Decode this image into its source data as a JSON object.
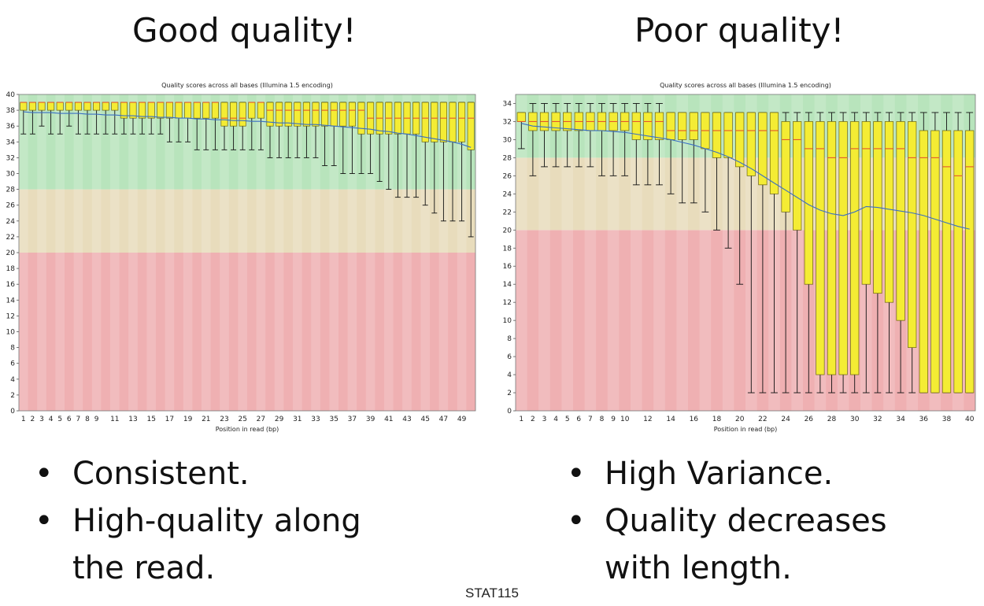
{
  "slide": {
    "left_heading": "Good quality!",
    "right_heading": "Poor quality!",
    "left_bullets": [
      "Consistent.",
      "High-quality along the read."
    ],
    "right_bullets": [
      "High Variance.",
      "Quality decreases with length."
    ],
    "footer": "STAT115"
  },
  "colors": {
    "good_zone": "#b8e4bc",
    "ok_zone": "#e8dcbc",
    "bad_zone": "#efb0b2",
    "box_fill": "#f4ec34",
    "box_stroke": "#6a6410",
    "median": "#e4572e",
    "mean_line": "#3a6fc4",
    "whisker": "#111111"
  },
  "chart_data": [
    {
      "type": "box",
      "title": "Quality scores across all bases (Illumina 1.5 encoding)",
      "xlabel": "Position in read (bp)",
      "ylabel": "",
      "ylim": [
        0,
        40
      ],
      "yticks": [
        0,
        2,
        4,
        6,
        8,
        10,
        12,
        14,
        16,
        18,
        20,
        22,
        24,
        26,
        28,
        30,
        32,
        34,
        36,
        38,
        40
      ],
      "x_tick_labels": [
        "1",
        "2",
        "3",
        "4",
        "5",
        "6",
        "7",
        "8",
        "9",
        "11",
        "13",
        "15",
        "17",
        "19",
        "21",
        "23",
        "25",
        "27",
        "29",
        "31",
        "33",
        "35",
        "37",
        "39",
        "41",
        "43",
        "45",
        "47",
        "49"
      ],
      "zones": {
        "good": [
          28,
          40
        ],
        "ok": [
          20,
          28
        ],
        "bad": [
          0,
          20
        ]
      },
      "boxes": [
        {
          "x": "1",
          "low": 35,
          "q1": 38,
          "median": 39,
          "q3": 39,
          "high": 39
        },
        {
          "x": "2",
          "low": 35,
          "q1": 38,
          "median": 39,
          "q3": 39,
          "high": 39
        },
        {
          "x": "3",
          "low": 36,
          "q1": 38,
          "median": 39,
          "q3": 39,
          "high": 39
        },
        {
          "x": "4",
          "low": 35,
          "q1": 38,
          "median": 39,
          "q3": 39,
          "high": 39
        },
        {
          "x": "5",
          "low": 35,
          "q1": 38,
          "median": 39,
          "q3": 39,
          "high": 39
        },
        {
          "x": "6",
          "low": 36,
          "q1": 38,
          "median": 39,
          "q3": 39,
          "high": 39
        },
        {
          "x": "7",
          "low": 35,
          "q1": 38,
          "median": 39,
          "q3": 39,
          "high": 39
        },
        {
          "x": "8",
          "low": 35,
          "q1": 38,
          "median": 39,
          "q3": 39,
          "high": 39
        },
        {
          "x": "9",
          "low": 35,
          "q1": 38,
          "median": 39,
          "q3": 39,
          "high": 39
        },
        {
          "x": "10",
          "low": 35,
          "q1": 38,
          "median": 39,
          "q3": 39,
          "high": 39
        },
        {
          "x": "11",
          "low": 35,
          "q1": 38,
          "median": 39,
          "q3": 39,
          "high": 39
        },
        {
          "x": "12",
          "low": 35,
          "q1": 37,
          "median": 39,
          "q3": 39,
          "high": 39
        },
        {
          "x": "13",
          "low": 35,
          "q1": 37,
          "median": 39,
          "q3": 39,
          "high": 39
        },
        {
          "x": "14",
          "low": 35,
          "q1": 37,
          "median": 39,
          "q3": 39,
          "high": 39
        },
        {
          "x": "15",
          "low": 35,
          "q1": 37,
          "median": 39,
          "q3": 39,
          "high": 39
        },
        {
          "x": "16",
          "low": 35,
          "q1": 37,
          "median": 39,
          "q3": 39,
          "high": 39
        },
        {
          "x": "17",
          "low": 34,
          "q1": 37,
          "median": 39,
          "q3": 39,
          "high": 39
        },
        {
          "x": "18",
          "low": 34,
          "q1": 37,
          "median": 39,
          "q3": 39,
          "high": 39
        },
        {
          "x": "19",
          "low": 34,
          "q1": 37,
          "median": 39,
          "q3": 39,
          "high": 39
        },
        {
          "x": "20",
          "low": 33,
          "q1": 37,
          "median": 39,
          "q3": 39,
          "high": 39
        },
        {
          "x": "21",
          "low": 33,
          "q1": 37,
          "median": 39,
          "q3": 39,
          "high": 39
        },
        {
          "x": "22",
          "low": 33,
          "q1": 37,
          "median": 39,
          "q3": 39,
          "high": 39
        },
        {
          "x": "23",
          "low": 33,
          "q1": 36,
          "median": 37,
          "q3": 39,
          "high": 39
        },
        {
          "x": "24",
          "low": 33,
          "q1": 36,
          "median": 37,
          "q3": 39,
          "high": 39
        },
        {
          "x": "25",
          "low": 33,
          "q1": 36,
          "median": 37,
          "q3": 39,
          "high": 39
        },
        {
          "x": "26",
          "low": 33,
          "q1": 37,
          "median": 39,
          "q3": 39,
          "high": 39
        },
        {
          "x": "27",
          "low": 33,
          "q1": 37,
          "median": 39,
          "q3": 39,
          "high": 39
        },
        {
          "x": "28",
          "low": 32,
          "q1": 36,
          "median": 38,
          "q3": 39,
          "high": 39
        },
        {
          "x": "29",
          "low": 32,
          "q1": 36,
          "median": 38,
          "q3": 39,
          "high": 39
        },
        {
          "x": "30",
          "low": 32,
          "q1": 36,
          "median": 38,
          "q3": 39,
          "high": 39
        },
        {
          "x": "31",
          "low": 32,
          "q1": 36,
          "median": 38,
          "q3": 39,
          "high": 39
        },
        {
          "x": "32",
          "low": 32,
          "q1": 36,
          "median": 38,
          "q3": 39,
          "high": 39
        },
        {
          "x": "33",
          "low": 32,
          "q1": 36,
          "median": 38,
          "q3": 39,
          "high": 39
        },
        {
          "x": "34",
          "low": 31,
          "q1": 36,
          "median": 38,
          "q3": 39,
          "high": 39
        },
        {
          "x": "35",
          "low": 31,
          "q1": 36,
          "median": 38,
          "q3": 39,
          "high": 39
        },
        {
          "x": "36",
          "low": 30,
          "q1": 36,
          "median": 38,
          "q3": 39,
          "high": 39
        },
        {
          "x": "37",
          "low": 30,
          "q1": 36,
          "median": 38,
          "q3": 39,
          "high": 39
        },
        {
          "x": "38",
          "low": 30,
          "q1": 35,
          "median": 38,
          "q3": 39,
          "high": 39
        },
        {
          "x": "39",
          "low": 30,
          "q1": 35,
          "median": 37,
          "q3": 39,
          "high": 39
        },
        {
          "x": "40",
          "low": 29,
          "q1": 35,
          "median": 37,
          "q3": 39,
          "high": 39
        },
        {
          "x": "41",
          "low": 28,
          "q1": 35,
          "median": 37,
          "q3": 39,
          "high": 39
        },
        {
          "x": "42",
          "low": 27,
          "q1": 35,
          "median": 37,
          "q3": 39,
          "high": 39
        },
        {
          "x": "43",
          "low": 27,
          "q1": 35,
          "median": 37,
          "q3": 39,
          "high": 39
        },
        {
          "x": "44",
          "low": 27,
          "q1": 35,
          "median": 37,
          "q3": 39,
          "high": 39
        },
        {
          "x": "45",
          "low": 26,
          "q1": 34,
          "median": 37,
          "q3": 39,
          "high": 39
        },
        {
          "x": "46",
          "low": 25,
          "q1": 34,
          "median": 37,
          "q3": 39,
          "high": 39
        },
        {
          "x": "47",
          "low": 24,
          "q1": 34,
          "median": 37,
          "q3": 39,
          "high": 39
        },
        {
          "x": "48",
          "low": 24,
          "q1": 34,
          "median": 37,
          "q3": 39,
          "high": 39
        },
        {
          "x": "49",
          "low": 24,
          "q1": 34,
          "median": 37,
          "q3": 39,
          "high": 39
        },
        {
          "x": "50",
          "low": 22,
          "q1": 33,
          "median": 37,
          "q3": 39,
          "high": 39
        }
      ],
      "mean": [
        37.8,
        37.7,
        37.7,
        37.7,
        37.6,
        37.6,
        37.6,
        37.5,
        37.5,
        37.4,
        37.4,
        37.3,
        37.3,
        37.2,
        37.2,
        37.1,
        37.1,
        37.0,
        37.0,
        36.9,
        36.9,
        36.8,
        36.8,
        36.7,
        36.7,
        36.6,
        36.6,
        36.5,
        36.4,
        36.4,
        36.3,
        36.2,
        36.2,
        36.1,
        36.0,
        35.9,
        35.8,
        35.7,
        35.6,
        35.4,
        35.3,
        35.1,
        35.0,
        34.8,
        34.6,
        34.4,
        34.2,
        34.0,
        33.7,
        33.3
      ]
    },
    {
      "type": "box",
      "title": "Quality scores across all bases (Illumina 1.5 encoding)",
      "xlabel": "Position in read (bp)",
      "ylabel": "",
      "ylim": [
        0,
        35
      ],
      "yticks": [
        0,
        2,
        4,
        6,
        8,
        10,
        12,
        14,
        16,
        18,
        20,
        22,
        24,
        26,
        28,
        30,
        32,
        34
      ],
      "x_tick_labels": [
        "1",
        "2",
        "3",
        "4",
        "5",
        "6",
        "7",
        "8",
        "9",
        "10",
        "12",
        "14",
        "16",
        "18",
        "20",
        "22",
        "24",
        "26",
        "28",
        "30",
        "32",
        "34",
        "36",
        "38",
        "40"
      ],
      "zones": {
        "good": [
          28,
          35
        ],
        "ok": [
          20,
          28
        ],
        "bad": [
          0,
          20
        ]
      },
      "boxes": [
        {
          "x": "1",
          "low": 29,
          "q1": 32,
          "median": 32,
          "q3": 33,
          "high": 33
        },
        {
          "x": "2",
          "low": 26,
          "q1": 31,
          "median": 32,
          "q3": 33,
          "high": 34
        },
        {
          "x": "3",
          "low": 27,
          "q1": 31,
          "median": 32,
          "q3": 33,
          "high": 34
        },
        {
          "x": "4",
          "low": 27,
          "q1": 31,
          "median": 32,
          "q3": 33,
          "high": 34
        },
        {
          "x": "5",
          "low": 27,
          "q1": 31,
          "median": 32,
          "q3": 33,
          "high": 34
        },
        {
          "x": "6",
          "low": 27,
          "q1": 31,
          "median": 32,
          "q3": 33,
          "high": 34
        },
        {
          "x": "7",
          "low": 27,
          "q1": 31,
          "median": 32,
          "q3": 33,
          "high": 34
        },
        {
          "x": "8",
          "low": 26,
          "q1": 31,
          "median": 32,
          "q3": 33,
          "high": 34
        },
        {
          "x": "9",
          "low": 26,
          "q1": 31,
          "median": 32,
          "q3": 33,
          "high": 34
        },
        {
          "x": "10",
          "low": 26,
          "q1": 31,
          "median": 32,
          "q3": 33,
          "high": 34
        },
        {
          "x": "11",
          "low": 25,
          "q1": 30,
          "median": 32,
          "q3": 33,
          "high": 34
        },
        {
          "x": "12",
          "low": 25,
          "q1": 30,
          "median": 32,
          "q3": 33,
          "high": 34
        },
        {
          "x": "13",
          "low": 25,
          "q1": 30,
          "median": 32,
          "q3": 33,
          "high": 34
        },
        {
          "x": "14",
          "low": 24,
          "q1": 30,
          "median": 31,
          "q3": 33,
          "high": 33
        },
        {
          "x": "15",
          "low": 23,
          "q1": 30,
          "median": 31,
          "q3": 33,
          "high": 33
        },
        {
          "x": "16",
          "low": 23,
          "q1": 30,
          "median": 31,
          "q3": 33,
          "high": 33
        },
        {
          "x": "17",
          "low": 22,
          "q1": 29,
          "median": 31,
          "q3": 33,
          "high": 33
        },
        {
          "x": "18",
          "low": 20,
          "q1": 28,
          "median": 31,
          "q3": 33,
          "high": 33
        },
        {
          "x": "19",
          "low": 18,
          "q1": 28,
          "median": 31,
          "q3": 33,
          "high": 33
        },
        {
          "x": "20",
          "low": 14,
          "q1": 27,
          "median": 31,
          "q3": 33,
          "high": 33
        },
        {
          "x": "21",
          "low": 2,
          "q1": 26,
          "median": 31,
          "q3": 33,
          "high": 33
        },
        {
          "x": "22",
          "low": 2,
          "q1": 25,
          "median": 31,
          "q3": 33,
          "high": 33
        },
        {
          "x": "23",
          "low": 2,
          "q1": 24,
          "median": 31,
          "q3": 33,
          "high": 33
        },
        {
          "x": "24",
          "low": 2,
          "q1": 22,
          "median": 30,
          "q3": 32,
          "high": 33
        },
        {
          "x": "25",
          "low": 2,
          "q1": 20,
          "median": 30,
          "q3": 32,
          "high": 33
        },
        {
          "x": "26",
          "low": 2,
          "q1": 14,
          "median": 29,
          "q3": 32,
          "high": 33
        },
        {
          "x": "27",
          "low": 2,
          "q1": 4,
          "median": 29,
          "q3": 32,
          "high": 33
        },
        {
          "x": "28",
          "low": 2,
          "q1": 4,
          "median": 28,
          "q3": 32,
          "high": 33
        },
        {
          "x": "29",
          "low": 2,
          "q1": 4,
          "median": 28,
          "q3": 32,
          "high": 33
        },
        {
          "x": "30",
          "low": 2,
          "q1": 4,
          "median": 29,
          "q3": 32,
          "high": 33
        },
        {
          "x": "31",
          "low": 2,
          "q1": 14,
          "median": 29,
          "q3": 32,
          "high": 33
        },
        {
          "x": "32",
          "low": 2,
          "q1": 13,
          "median": 29,
          "q3": 32,
          "high": 33
        },
        {
          "x": "33",
          "low": 2,
          "q1": 12,
          "median": 29,
          "q3": 32,
          "high": 33
        },
        {
          "x": "34",
          "low": 2,
          "q1": 10,
          "median": 29,
          "q3": 32,
          "high": 33
        },
        {
          "x": "35",
          "low": 2,
          "q1": 7,
          "median": 28,
          "q3": 32,
          "high": 33
        },
        {
          "x": "36",
          "low": 2,
          "q1": 2,
          "median": 28,
          "q3": 31,
          "high": 33
        },
        {
          "x": "37",
          "low": 2,
          "q1": 2,
          "median": 28,
          "q3": 31,
          "high": 33
        },
        {
          "x": "38",
          "low": 2,
          "q1": 2,
          "median": 27,
          "q3": 31,
          "high": 33
        },
        {
          "x": "39",
          "low": 2,
          "q1": 2,
          "median": 26,
          "q3": 31,
          "high": 33
        },
        {
          "x": "40",
          "low": 2,
          "q1": 2,
          "median": 27,
          "q3": 31,
          "high": 33
        }
      ],
      "mean": [
        31.8,
        31.5,
        31.4,
        31.3,
        31.2,
        31.1,
        31.0,
        31.0,
        30.9,
        30.8,
        30.6,
        30.4,
        30.2,
        30.0,
        29.7,
        29.4,
        29.0,
        28.6,
        28.1,
        27.5,
        26.8,
        26.0,
        25.2,
        24.4,
        23.6,
        22.8,
        22.2,
        21.8,
        21.6,
        22.0,
        22.6,
        22.5,
        22.3,
        22.1,
        21.9,
        21.6,
        21.2,
        20.8,
        20.4,
        20.1
      ]
    }
  ]
}
